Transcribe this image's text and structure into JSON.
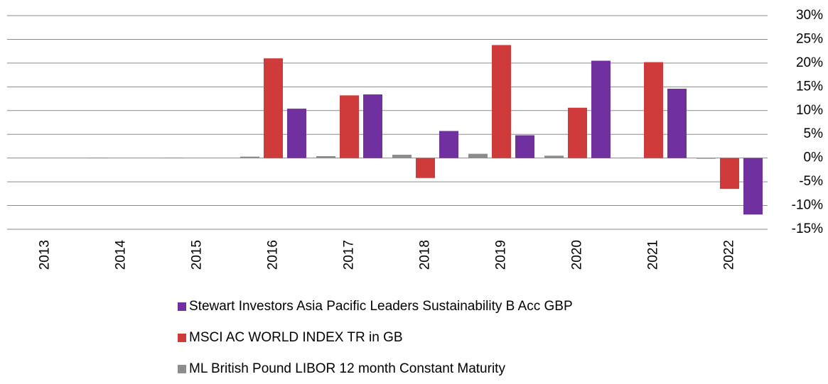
{
  "chart_data": {
    "type": "bar",
    "categories": [
      "2013",
      "2014",
      "2015",
      "2016",
      "2017",
      "2018",
      "2019",
      "2020",
      "2021",
      "2022"
    ],
    "series": [
      {
        "name": "ML British Pound LIBOR 12 month Constant Maturity",
        "color": "#8c8c8c",
        "values": [
          null,
          0.1,
          0.1,
          0.3,
          0.4,
          0.7,
          0.9,
          0.5,
          0.1,
          -0.1
        ]
      },
      {
        "name": "MSCI AC WORLD INDEX TR in GB",
        "color": "#cf3a3a",
        "values": [
          null,
          null,
          null,
          21.0,
          13.2,
          -4.2,
          23.8,
          10.6,
          20.2,
          -6.5
        ]
      },
      {
        "name": "Stewart Investors Asia Pacific Leaders Sustainability B Acc GBP",
        "color": "#7030a0",
        "values": [
          null,
          null,
          null,
          10.4,
          13.4,
          5.7,
          4.8,
          20.5,
          14.6,
          -11.9
        ]
      }
    ],
    "ylim": [
      -15,
      30
    ],
    "yticks": [
      {
        "value": -15,
        "label": "-15%"
      },
      {
        "value": -10,
        "label": "-10%"
      },
      {
        "value": -5,
        "label": "-5%"
      },
      {
        "value": 0,
        "label": "0%"
      },
      {
        "value": 5,
        "label": "5%"
      },
      {
        "value": 10,
        "label": "10%"
      },
      {
        "value": 15,
        "label": "15%"
      },
      {
        "value": 20,
        "label": "20%"
      },
      {
        "value": 25,
        "label": "25%"
      },
      {
        "value": 30,
        "label": "30%"
      }
    ],
    "grid": true
  }
}
